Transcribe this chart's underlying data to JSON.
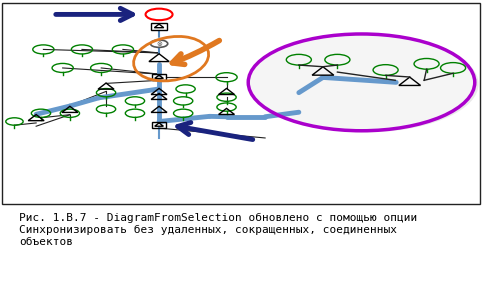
{
  "title": "Рис. 1.В.7 - DiagramFromSelection обновлено с помощью опции\nСинхронизировать без удаленных, сокращенных, соединенных\nобъектов",
  "title_fontsize": 8.0,
  "bg_color": "#ffffff",
  "border_color": "#000000",
  "gc": "#008000",
  "rc": "#ff0000",
  "bc": "#6699cc",
  "bk": "#222222",
  "arrow_blue": "#1a237e",
  "arrow_orange": "#e07820",
  "purple": "#aa00cc",
  "orange": "#e07820"
}
